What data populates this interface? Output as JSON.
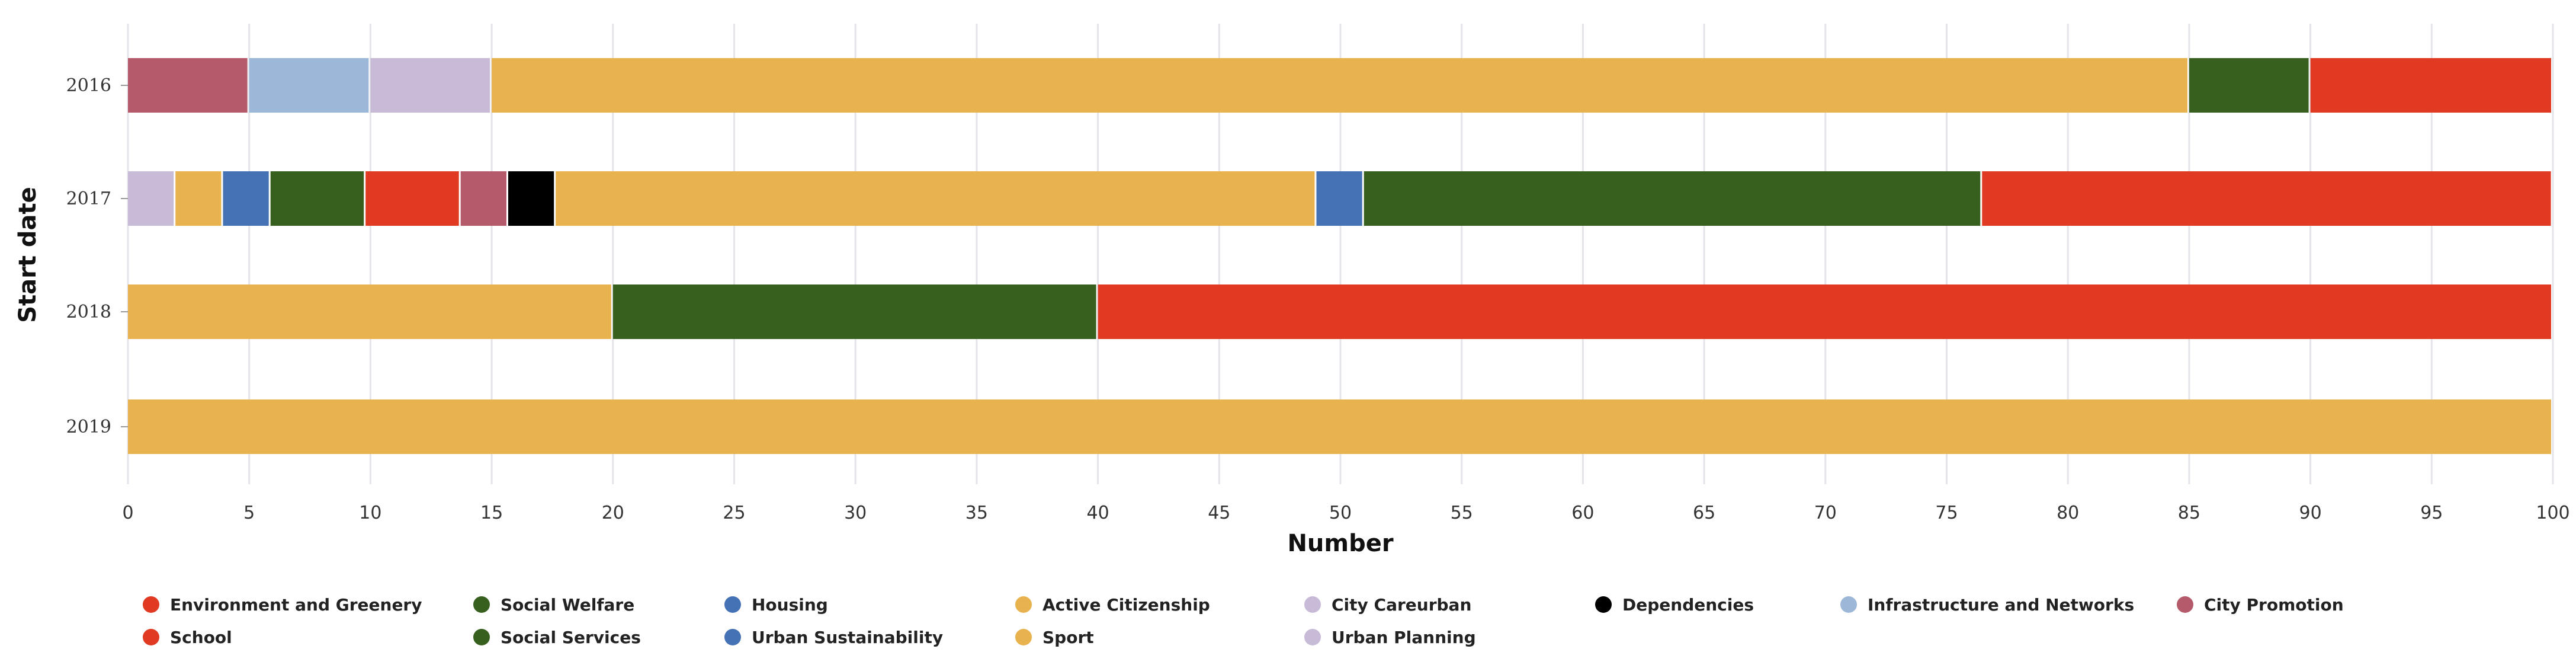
{
  "chart_data": {
    "type": "bar",
    "orientation": "horizontal",
    "stacked": true,
    "xlabel": "Number",
    "ylabel": "Start date",
    "xlim": [
      0,
      100
    ],
    "xticks": [
      0,
      5,
      10,
      15,
      20,
      25,
      30,
      35,
      40,
      45,
      50,
      55,
      60,
      65,
      70,
      75,
      80,
      85,
      90,
      95,
      100
    ],
    "grid": true,
    "legend_position": "bottom",
    "categories": [
      "2016",
      "2017",
      "2018",
      "2019"
    ],
    "rows": [
      {
        "category": "2016",
        "segments": [
          {
            "series": "City Promotion",
            "value": 5
          },
          {
            "series": "Infrastructure and Networks",
            "value": 5
          },
          {
            "series": "Urban Planning",
            "value": 5
          },
          {
            "series": "Sport",
            "value": 70
          },
          {
            "series": "Social Services",
            "value": 5
          },
          {
            "series": "School",
            "value": 10
          }
        ]
      },
      {
        "category": "2017",
        "segments": [
          {
            "series": "City Careurban",
            "value": 1.96
          },
          {
            "series": "Active Citizenship",
            "value": 1.96
          },
          {
            "series": "Housing",
            "value": 1.96
          },
          {
            "series": "Social Welfare",
            "value": 3.92
          },
          {
            "series": "Environment and Greenery",
            "value": 3.92
          },
          {
            "series": "City Promotion",
            "value": 1.96
          },
          {
            "series": "Dependencies",
            "value": 1.96
          },
          {
            "series": "Sport",
            "value": 31.37
          },
          {
            "series": "Urban Sustainability",
            "value": 1.96
          },
          {
            "series": "Social Services",
            "value": 25.49
          },
          {
            "series": "School",
            "value": 23.53
          }
        ]
      },
      {
        "category": "2018",
        "segments": [
          {
            "series": "Sport",
            "value": 20
          },
          {
            "series": "Social Services",
            "value": 20
          },
          {
            "series": "School",
            "value": 60
          }
        ]
      },
      {
        "category": "2019",
        "segments": [
          {
            "series": "Sport",
            "value": 100
          }
        ]
      }
    ],
    "legend": [
      {
        "name": "Environment and Greenery",
        "color": "#e03a22"
      },
      {
        "name": "Social Welfare",
        "color": "#37601f"
      },
      {
        "name": "Housing",
        "color": "#4472b4"
      },
      {
        "name": "Active Citizenship",
        "color": "#e8b34e"
      },
      {
        "name": "City Careurban",
        "color": "#c8bbd8"
      },
      {
        "name": "Dependencies",
        "color": "#000000"
      },
      {
        "name": "Infrastructure and Networks",
        "color": "#9db7d8"
      },
      {
        "name": "City Promotion",
        "color": "#b55a6a"
      },
      {
        "name": "School",
        "color": "#e03a22"
      },
      {
        "name": "Social Services",
        "color": "#37601f"
      },
      {
        "name": "Urban Sustainability",
        "color": "#4472b4"
      },
      {
        "name": "Sport",
        "color": "#e8b34e"
      },
      {
        "name": "Urban Planning",
        "color": "#c8bbd8"
      }
    ]
  }
}
